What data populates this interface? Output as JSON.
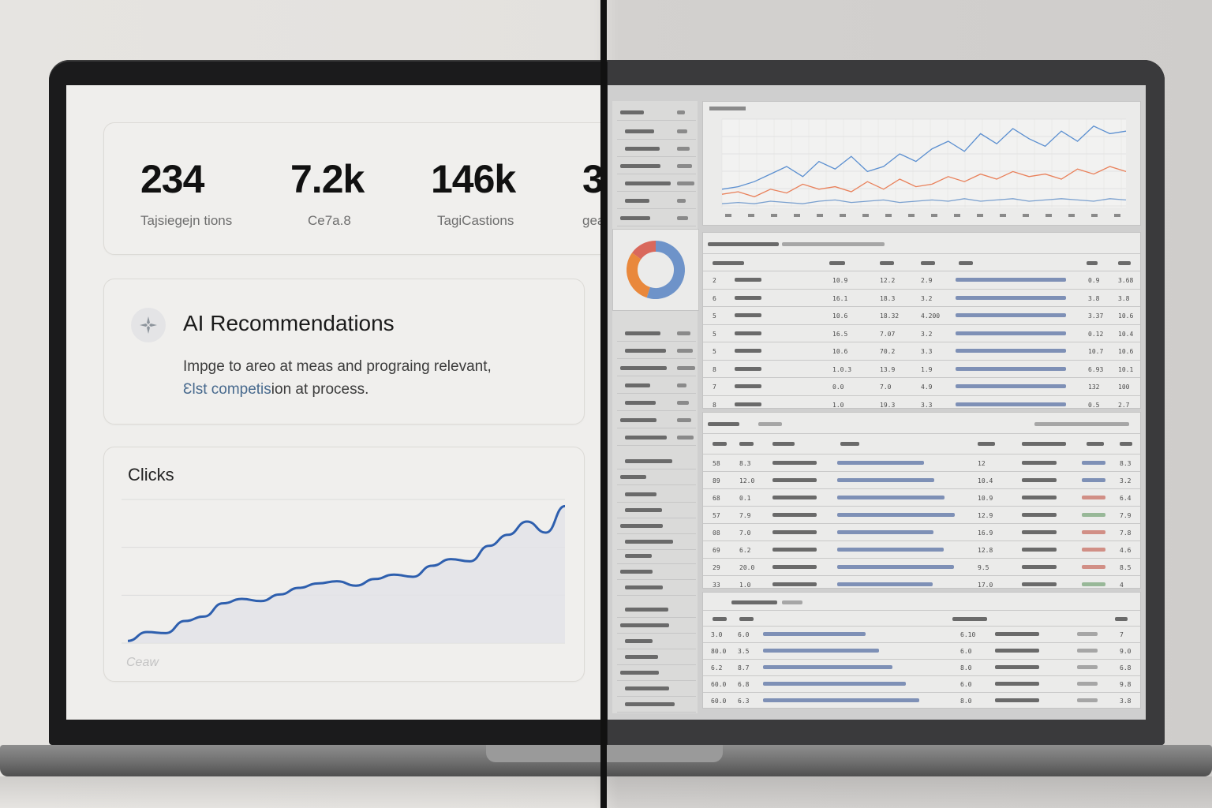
{
  "stats": [
    {
      "value": "234",
      "label": "Tajsiegejn tions"
    },
    {
      "value": "7.2k",
      "label": "Ce7a.8"
    },
    {
      "value": "146k",
      "label": "TagiCastions"
    },
    {
      "value": "3",
      "label": "gea"
    }
  ],
  "recommendations": {
    "icon": "sparkle-icon",
    "title": "AI Recommendations",
    "body_before": "Impge to areo at meas and prograing relevant,",
    "body_highlight": "Ɛlst competis",
    "body_after": "ion at process."
  },
  "clicks_chart": {
    "title": "Clicks",
    "footer": "Ceaw"
  },
  "chart_data": {
    "type": "area",
    "title": "Clicks",
    "xlabel": "",
    "ylabel": "",
    "grid": true,
    "series": [
      {
        "values": [
          2,
          10,
          9,
          20,
          24,
          36,
          40,
          38,
          44,
          50,
          54,
          56,
          52,
          58,
          62,
          60,
          70,
          76,
          74,
          88,
          98,
          110,
          100,
          124
        ]
      }
    ]
  },
  "right_screen": {
    "colors": {
      "blue_series": "#5b8fd0",
      "orange_series": "#e9805a",
      "donut_orange": "#e9883c",
      "donut_blue": "#6e93c9",
      "donut_red": "#d9685c"
    },
    "line_chart": {
      "series": [
        {
          "values": [
            12,
            14,
            18,
            24,
            30,
            22,
            34,
            28,
            38,
            26,
            30,
            40,
            34,
            44,
            50,
            42,
            56,
            48,
            60,
            52,
            46,
            58,
            50,
            62,
            56,
            58
          ]
        },
        {
          "values": [
            8,
            10,
            6,
            12,
            9,
            16,
            12,
            14,
            10,
            18,
            12,
            20,
            14,
            16,
            22,
            18,
            24,
            20,
            26,
            22,
            24,
            20,
            28,
            24,
            30,
            26
          ]
        },
        {
          "values": [
            3,
            4,
            3,
            5,
            4,
            3,
            5,
            6,
            4,
            5,
            6,
            4,
            5,
            6,
            5,
            7,
            5,
            6,
            7,
            5,
            6,
            7,
            6,
            5,
            7,
            6
          ]
        }
      ]
    },
    "donut": [
      {
        "value": 0.55
      },
      {
        "value": 0.3
      },
      {
        "value": 0.15
      }
    ],
    "table1_rows": [
      [
        "2",
        "10.9",
        "12.2",
        "2.9",
        "0.9",
        "3.68"
      ],
      [
        "6",
        "16.1",
        "18.3",
        "3.2",
        "3.8",
        "3.8"
      ],
      [
        "5",
        "10.6",
        "18.32",
        "4.200",
        "3.37",
        "10.6"
      ],
      [
        "5",
        "16.5",
        "7.07",
        "3.2",
        "0.12",
        "10.4"
      ],
      [
        "5",
        "10.6",
        "70.2",
        "3.3",
        "10.7",
        "10.6"
      ],
      [
        "8",
        "1.0.3",
        "13.9",
        "1.9",
        "6.93",
        "10.1"
      ],
      [
        "7",
        "0.0",
        "7.0",
        "4.9",
        "132",
        "100"
      ],
      [
        "8",
        "1.0",
        "19.3",
        "3.3",
        "0.5",
        "2.7"
      ]
    ],
    "table2_rows": [
      [
        "58",
        "8.3",
        "12",
        "8.3",
        "blue"
      ],
      [
        "89",
        "12.0",
        "10.4",
        "3.2",
        "blue"
      ],
      [
        "68",
        "0.1",
        "10.9",
        "6.4",
        "red"
      ],
      [
        "57",
        "7.9",
        "12.9",
        "7.9",
        "green"
      ],
      [
        "08",
        "7.0",
        "16.9",
        "7.8",
        "red"
      ],
      [
        "69",
        "6.2",
        "12.8",
        "4.6",
        "red"
      ],
      [
        "29",
        "20.0",
        "9.5",
        "8.5",
        "red"
      ],
      [
        "33",
        "1.0",
        "17.0",
        "4",
        "green"
      ]
    ],
    "table3_rows": [
      [
        "3.0",
        "6.0",
        "6.10",
        "7"
      ],
      [
        "80.0",
        "3.5",
        "6.0",
        "9.0"
      ],
      [
        "6.2",
        "8.7",
        "8.0",
        "6.8"
      ],
      [
        "60.0",
        "6.8",
        "6.0",
        "9.8"
      ],
      [
        "60.0",
        "6.3",
        "8.0",
        "3.8"
      ]
    ]
  }
}
